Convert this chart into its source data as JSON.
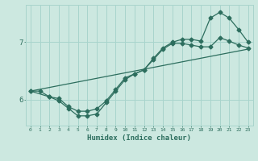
{
  "xlabel": "Humidex (Indice chaleur)",
  "bg_color": "#cce8e0",
  "line_color": "#2d6e5e",
  "grid_color": "#a8d4cc",
  "xticks": [
    0,
    1,
    2,
    3,
    4,
    5,
    6,
    7,
    8,
    9,
    10,
    11,
    12,
    13,
    14,
    15,
    16,
    17,
    18,
    19,
    20,
    21,
    22,
    23
  ],
  "yticks": [
    6,
    7
  ],
  "xlim": [
    -0.5,
    23.5
  ],
  "ylim": [
    5.55,
    7.65
  ],
  "line1_x": [
    0,
    1,
    2,
    3,
    4,
    5,
    6,
    7,
    8,
    9,
    10,
    11,
    12,
    13,
    14,
    15,
    16,
    17,
    18,
    19,
    20,
    21,
    22,
    23
  ],
  "line1_y": [
    6.15,
    6.15,
    6.05,
    6.02,
    5.88,
    5.8,
    5.8,
    5.84,
    5.98,
    6.18,
    6.38,
    6.45,
    6.52,
    6.7,
    6.88,
    6.98,
    6.98,
    6.95,
    6.92,
    6.92,
    7.08,
    7.02,
    6.95,
    6.9
  ],
  "line2_x": [
    0,
    2,
    3,
    4,
    5,
    6,
    7,
    8,
    9,
    10,
    11,
    12,
    13,
    14,
    15,
    16,
    17,
    18,
    19,
    20,
    21,
    22,
    23
  ],
  "line2_y": [
    6.15,
    6.05,
    5.98,
    5.85,
    5.72,
    5.72,
    5.75,
    5.95,
    6.15,
    6.35,
    6.45,
    6.52,
    6.72,
    6.9,
    7.0,
    7.05,
    7.05,
    7.02,
    7.42,
    7.52,
    7.42,
    7.22,
    7.0
  ],
  "line3_x": [
    0,
    23
  ],
  "line3_y": [
    6.15,
    6.88
  ]
}
